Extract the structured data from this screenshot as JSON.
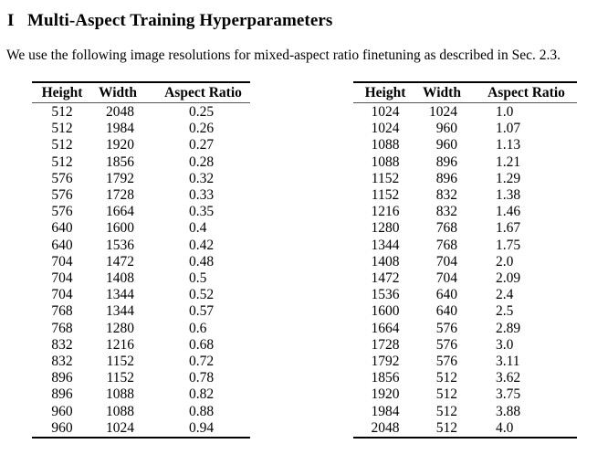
{
  "heading": {
    "number": "I",
    "title": "Multi-Aspect Training Hyperparameters"
  },
  "intro": {
    "text": "We use the following image resolutions for mixed-aspect ratio finetuning as described in Sec. 2.3."
  },
  "tables": {
    "headers": [
      "Height",
      "Width",
      "Aspect Ratio"
    ],
    "left": {
      "rows": [
        [
          "512",
          "2048",
          "0.25"
        ],
        [
          "512",
          "1984",
          "0.26"
        ],
        [
          "512",
          "1920",
          "0.27"
        ],
        [
          "512",
          "1856",
          "0.28"
        ],
        [
          "576",
          "1792",
          "0.32"
        ],
        [
          "576",
          "1728",
          "0.33"
        ],
        [
          "576",
          "1664",
          "0.35"
        ],
        [
          "640",
          "1600",
          "0.4"
        ],
        [
          "640",
          "1536",
          "0.42"
        ],
        [
          "704",
          "1472",
          "0.48"
        ],
        [
          "704",
          "1408",
          "0.5"
        ],
        [
          "704",
          "1344",
          "0.52"
        ],
        [
          "768",
          "1344",
          "0.57"
        ],
        [
          "768",
          "1280",
          "0.6"
        ],
        [
          "832",
          "1216",
          "0.68"
        ],
        [
          "832",
          "1152",
          "0.72"
        ],
        [
          "896",
          "1152",
          "0.78"
        ],
        [
          "896",
          "1088",
          "0.82"
        ],
        [
          "960",
          "1088",
          "0.88"
        ],
        [
          "960",
          "1024",
          "0.94"
        ]
      ]
    },
    "right": {
      "rows": [
        [
          "1024",
          "1024",
          "1.0"
        ],
        [
          "1024",
          "960",
          "1.07"
        ],
        [
          "1088",
          "960",
          "1.13"
        ],
        [
          "1088",
          "896",
          "1.21"
        ],
        [
          "1152",
          "896",
          "1.29"
        ],
        [
          "1152",
          "832",
          "1.38"
        ],
        [
          "1216",
          "832",
          "1.46"
        ],
        [
          "1280",
          "768",
          "1.67"
        ],
        [
          "1344",
          "768",
          "1.75"
        ],
        [
          "1408",
          "704",
          "2.0"
        ],
        [
          "1472",
          "704",
          "2.09"
        ],
        [
          "1536",
          "640",
          "2.4"
        ],
        [
          "1600",
          "640",
          "2.5"
        ],
        [
          "1664",
          "576",
          "2.89"
        ],
        [
          "1728",
          "576",
          "3.0"
        ],
        [
          "1792",
          "576",
          "3.11"
        ],
        [
          "1856",
          "512",
          "3.62"
        ],
        [
          "1920",
          "512",
          "3.75"
        ],
        [
          "1984",
          "512",
          "3.88"
        ],
        [
          "2048",
          "512",
          "4.0"
        ]
      ]
    }
  },
  "colors": {
    "text": "#000000",
    "rule_heavy": "#000000",
    "rule_light": "#555555",
    "background": "#ffffff"
  }
}
